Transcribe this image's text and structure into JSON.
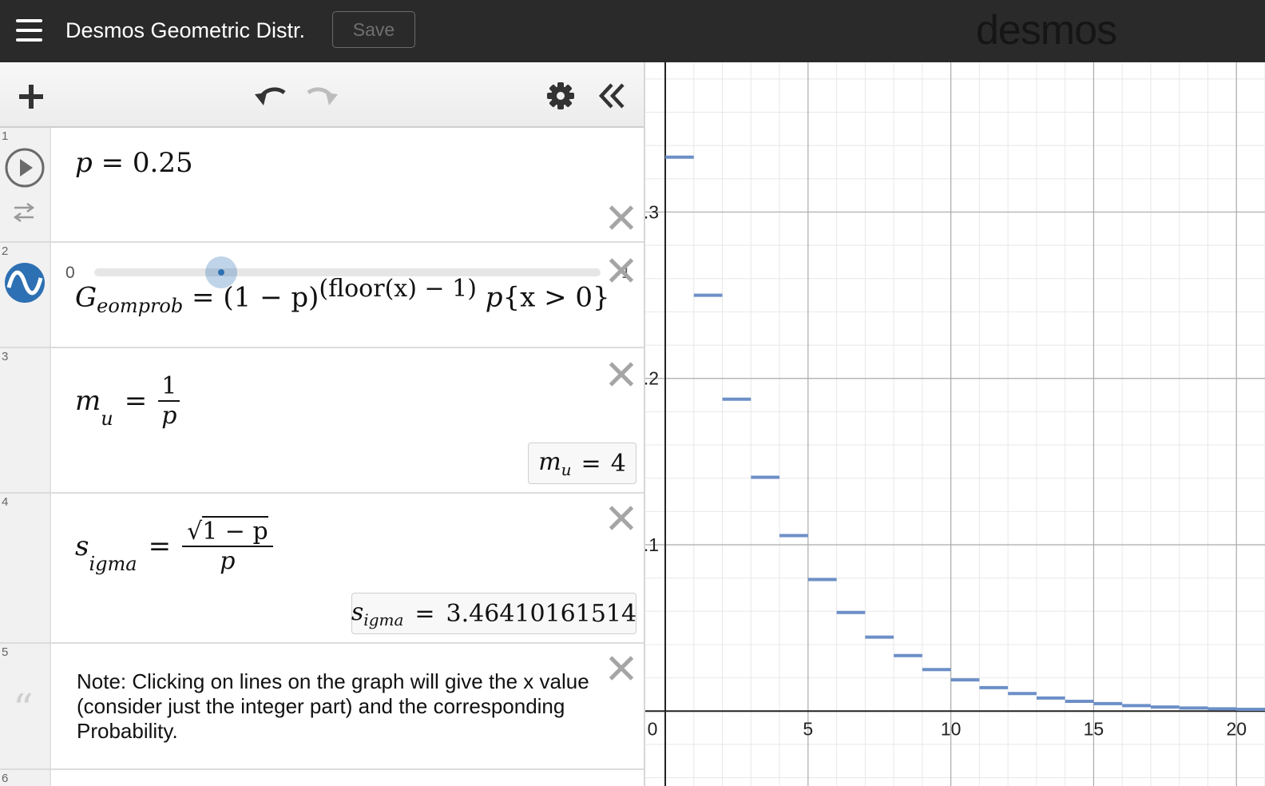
{
  "app": {
    "title": "Desmos Geometric Distr.",
    "save_label": "Save",
    "logo_text": "desmos",
    "icons": [
      "menu-icon",
      "plus-icon",
      "undo-icon",
      "redo-icon",
      "gear-icon",
      "collapse-icon"
    ]
  },
  "expressions": [
    {
      "number": "1",
      "p_name": "p",
      "equals": "=",
      "p_value": "0.25",
      "slider_min": "0",
      "slider_max": "1",
      "slider_fraction": 0.25
    },
    {
      "number": "2",
      "lhs_base": "G",
      "lhs_sub": "eomprob",
      "eq": "=",
      "base": "(1 − p)",
      "exponent": "(floor(x) − 1)",
      "tail_p": "p",
      "tail_cond": "{x > 0}"
    },
    {
      "number": "3",
      "lhs_base": "m",
      "lhs_sub": "u",
      "eq": "=",
      "numerator": "1",
      "denominator": "p",
      "result_base": "m",
      "result_sub": "u",
      "result_eq": "=",
      "result_value": "4"
    },
    {
      "number": "4",
      "lhs_base": "s",
      "lhs_sub": "igma",
      "eq": "=",
      "sqrt_expr": "1 − p",
      "denominator": "p",
      "result_base": "s",
      "result_sub": "igma",
      "result_eq": "=",
      "result_value": "3.46410161514"
    },
    {
      "number": "5",
      "text": "Note:  Clicking on lines on the graph will give the x value (consider just the integer part) and the corresponding Probability."
    },
    {
      "number": "6"
    }
  ],
  "chart_data": {
    "type": "line",
    "title": "",
    "xlabel": "",
    "ylabel": "",
    "xlim": [
      -0.7,
      21
    ],
    "ylim": [
      -0.045,
      0.39
    ],
    "x_ticks": [
      "0",
      "5",
      "10",
      "15",
      "20"
    ],
    "y_ticks": [
      "0.1",
      "0.2",
      "0.3"
    ],
    "grid": true,
    "series": [
      {
        "color": "#6c8fc7",
        "x": [
          [
            0,
            1
          ],
          [
            1,
            2
          ],
          [
            2,
            3
          ],
          [
            3,
            4
          ],
          [
            4,
            5
          ],
          [
            5,
            6
          ],
          [
            6,
            7
          ],
          [
            7,
            8
          ],
          [
            8,
            9
          ],
          [
            9,
            10
          ],
          [
            10,
            11
          ],
          [
            11,
            12
          ],
          [
            12,
            13
          ],
          [
            13,
            14
          ],
          [
            14,
            15
          ],
          [
            15,
            16
          ],
          [
            16,
            17
          ],
          [
            17,
            18
          ],
          [
            18,
            19
          ],
          [
            19,
            20
          ],
          [
            20,
            21
          ]
        ],
        "y": [
          0.333,
          0.25,
          0.1875,
          0.1406,
          0.1055,
          0.0791,
          0.0593,
          0.0445,
          0.0334,
          0.025,
          0.0188,
          0.0141,
          0.0106,
          0.0079,
          0.0059,
          0.0045,
          0.0033,
          0.0025,
          0.0019,
          0.0014,
          0.0011
        ]
      }
    ]
  }
}
